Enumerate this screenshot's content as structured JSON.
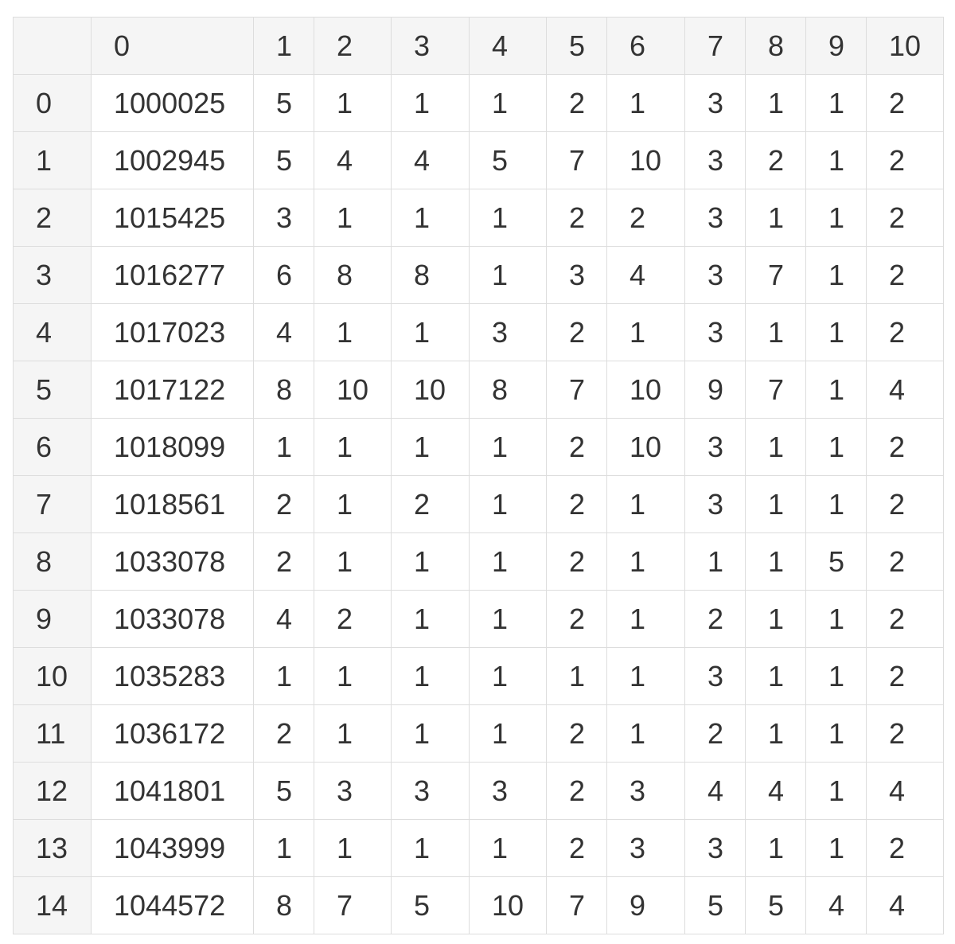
{
  "table": {
    "corner": "",
    "columns": [
      "0",
      "1",
      "2",
      "3",
      "4",
      "5",
      "6",
      "7",
      "8",
      "9",
      "10"
    ],
    "rows": [
      {
        "index": "0",
        "cells": [
          "1000025",
          "5",
          "1",
          "1",
          "1",
          "2",
          "1",
          "3",
          "1",
          "1",
          "2"
        ]
      },
      {
        "index": "1",
        "cells": [
          "1002945",
          "5",
          "4",
          "4",
          "5",
          "7",
          "10",
          "3",
          "2",
          "1",
          "2"
        ]
      },
      {
        "index": "2",
        "cells": [
          "1015425",
          "3",
          "1",
          "1",
          "1",
          "2",
          "2",
          "3",
          "1",
          "1",
          "2"
        ]
      },
      {
        "index": "3",
        "cells": [
          "1016277",
          "6",
          "8",
          "8",
          "1",
          "3",
          "4",
          "3",
          "7",
          "1",
          "2"
        ]
      },
      {
        "index": "4",
        "cells": [
          "1017023",
          "4",
          "1",
          "1",
          "3",
          "2",
          "1",
          "3",
          "1",
          "1",
          "2"
        ]
      },
      {
        "index": "5",
        "cells": [
          "1017122",
          "8",
          "10",
          "10",
          "8",
          "7",
          "10",
          "9",
          "7",
          "1",
          "4"
        ]
      },
      {
        "index": "6",
        "cells": [
          "1018099",
          "1",
          "1",
          "1",
          "1",
          "2",
          "10",
          "3",
          "1",
          "1",
          "2"
        ]
      },
      {
        "index": "7",
        "cells": [
          "1018561",
          "2",
          "1",
          "2",
          "1",
          "2",
          "1",
          "3",
          "1",
          "1",
          "2"
        ]
      },
      {
        "index": "8",
        "cells": [
          "1033078",
          "2",
          "1",
          "1",
          "1",
          "2",
          "1",
          "1",
          "1",
          "5",
          "2"
        ]
      },
      {
        "index": "9",
        "cells": [
          "1033078",
          "4",
          "2",
          "1",
          "1",
          "2",
          "1",
          "2",
          "1",
          "1",
          "2"
        ]
      },
      {
        "index": "10",
        "cells": [
          "1035283",
          "1",
          "1",
          "1",
          "1",
          "1",
          "1",
          "3",
          "1",
          "1",
          "2"
        ]
      },
      {
        "index": "11",
        "cells": [
          "1036172",
          "2",
          "1",
          "1",
          "1",
          "2",
          "1",
          "2",
          "1",
          "1",
          "2"
        ]
      },
      {
        "index": "12",
        "cells": [
          "1041801",
          "5",
          "3",
          "3",
          "3",
          "2",
          "3",
          "4",
          "4",
          "1",
          "4"
        ]
      },
      {
        "index": "13",
        "cells": [
          "1043999",
          "1",
          "1",
          "1",
          "1",
          "2",
          "3",
          "3",
          "1",
          "1",
          "2"
        ]
      },
      {
        "index": "14",
        "cells": [
          "1044572",
          "8",
          "7",
          "5",
          "10",
          "7",
          "9",
          "5",
          "5",
          "4",
          "4"
        ]
      }
    ]
  },
  "colors": {
    "header_background": "#f5f5f5",
    "border": "#dddddd",
    "text": "#333333"
  }
}
